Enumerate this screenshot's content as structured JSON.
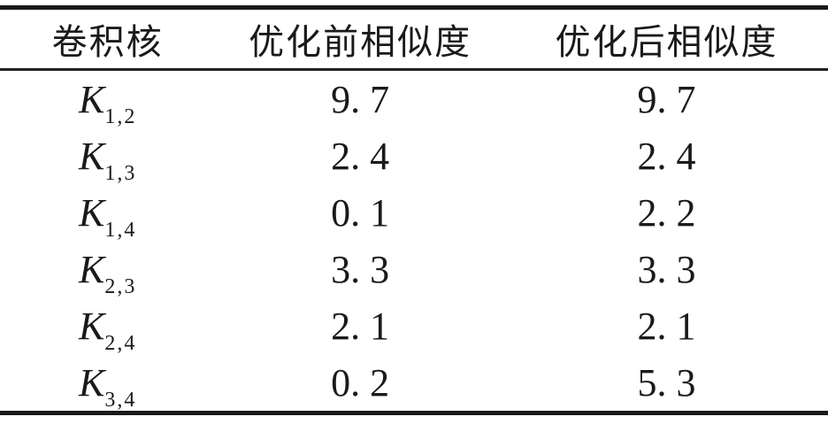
{
  "table": {
    "columns": {
      "kernel": "卷积核",
      "before": "优化前相似度",
      "after": "优化后相似度"
    },
    "rows": [
      {
        "kernel_base": "K",
        "kernel_sub": "1,2",
        "before": "9. 7",
        "after": "9. 7"
      },
      {
        "kernel_base": "K",
        "kernel_sub": "1,3",
        "before": "2. 4",
        "after": "2. 4"
      },
      {
        "kernel_base": "K",
        "kernel_sub": "1,4",
        "before": "0. 1",
        "after": "2. 2"
      },
      {
        "kernel_base": "K",
        "kernel_sub": "2,3",
        "before": "3. 3",
        "after": "3. 3"
      },
      {
        "kernel_base": "K",
        "kernel_sub": "2,4",
        "before": "2. 1",
        "after": "2. 1"
      },
      {
        "kernel_base": "K",
        "kernel_sub": "3,4",
        "before": "0. 2",
        "after": "5. 3"
      }
    ]
  },
  "chart_data": {
    "type": "table",
    "title": "",
    "columns": [
      "卷积核",
      "优化前相似度",
      "优化后相似度"
    ],
    "rows": [
      [
        "K1,2",
        9.7,
        9.7
      ],
      [
        "K1,3",
        2.4,
        2.4
      ],
      [
        "K1,4",
        0.1,
        2.2
      ],
      [
        "K2,3",
        3.3,
        3.3
      ],
      [
        "K2,4",
        2.1,
        2.1
      ],
      [
        "K3,4",
        0.2,
        5.3
      ]
    ]
  },
  "colors": {
    "rule": "#1a1a1a",
    "text": "#1a1a1a",
    "background": "#ffffff"
  }
}
